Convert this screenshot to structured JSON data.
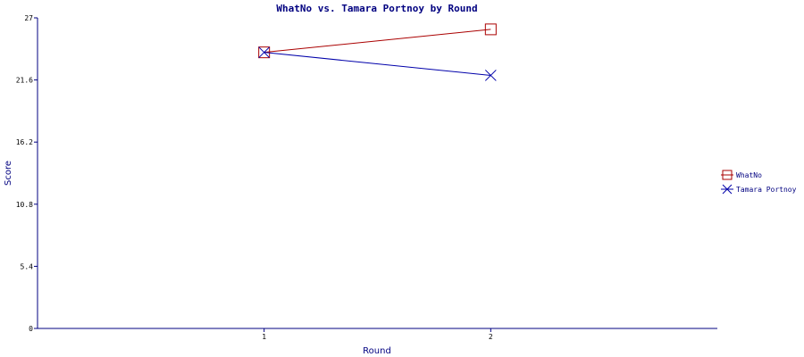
{
  "chart_data": {
    "type": "line",
    "title": "WhatNo vs. Tamara Portnoy by Round",
    "xlabel": "Round",
    "ylabel": "Score",
    "x": [
      1,
      2
    ],
    "x_tick_labels": [
      "1",
      "2"
    ],
    "ylim": [
      0,
      27
    ],
    "y_ticks": [
      0,
      5.4,
      10.8,
      16.2,
      21.6,
      27
    ],
    "y_tick_labels": [
      "0",
      "5.4",
      "10.8",
      "16.2",
      "21.6",
      "27"
    ],
    "grid": false,
    "legend_position": "right",
    "series": [
      {
        "name": "WhatNo",
        "values": [
          24,
          26
        ],
        "color": "#aa0000",
        "marker": "square"
      },
      {
        "name": "Tamara Portnoy",
        "values": [
          24,
          22
        ],
        "color": "#0000aa",
        "marker": "x"
      }
    ]
  }
}
